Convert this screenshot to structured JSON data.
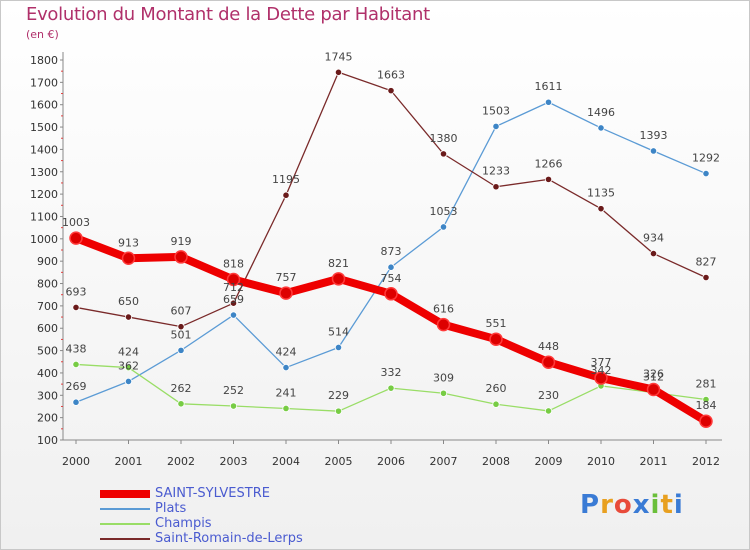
{
  "title": "Evolution du Montant de la Dette par Habitant",
  "unit_label": "(en €)",
  "logo": {
    "text": "Proxiti",
    "letter_colors": [
      "#3a7bd5",
      "#e8a020",
      "#e84b3a",
      "#3a7bd5",
      "#6bbf3a",
      "#e8a020",
      "#3a7bd5"
    ]
  },
  "chart_data": {
    "type": "line",
    "title": "Evolution du Montant de la Dette par Habitant",
    "ylabel": "(en €)",
    "xlabel": "",
    "ylim": [
      100,
      1800
    ],
    "y_ticks": [
      100,
      200,
      300,
      400,
      500,
      600,
      700,
      800,
      900,
      1000,
      1100,
      1200,
      1300,
      1400,
      1500,
      1600,
      1700,
      1800
    ],
    "x": [
      "2000",
      "2001",
      "2002",
      "2003",
      "2004",
      "2005",
      "2006",
      "2007",
      "2008",
      "2009",
      "2010",
      "2011",
      "2012"
    ],
    "grid": false,
    "legend_position": "bottom-left",
    "series": [
      {
        "name": "SAINT-SYLVESTRE",
        "color": "#ee0000",
        "marker": "#dd0000",
        "values": [
          1003,
          913,
          919,
          818,
          757,
          821,
          754,
          616,
          551,
          448,
          377,
          326,
          184
        ]
      },
      {
        "name": "Plats",
        "color": "#5b9bd5",
        "marker": "#3d85c6",
        "values": [
          269,
          362,
          501,
          659,
          424,
          514,
          873,
          1053,
          1503,
          1611,
          1496,
          1393,
          1292
        ]
      },
      {
        "name": "Champis",
        "color": "#99dd66",
        "marker": "#77cc44",
        "values": [
          438,
          424,
          262,
          252,
          241,
          229,
          332,
          309,
          260,
          230,
          342,
          312,
          281
        ]
      },
      {
        "name": "Saint-Romain-de-Lerps",
        "color": "#7a2a2a",
        "marker": "#6a1a1a",
        "values": [
          693,
          650,
          607,
          712,
          1195,
          1745,
          1663,
          1380,
          1233,
          1266,
          1135,
          934,
          827
        ]
      }
    ]
  }
}
